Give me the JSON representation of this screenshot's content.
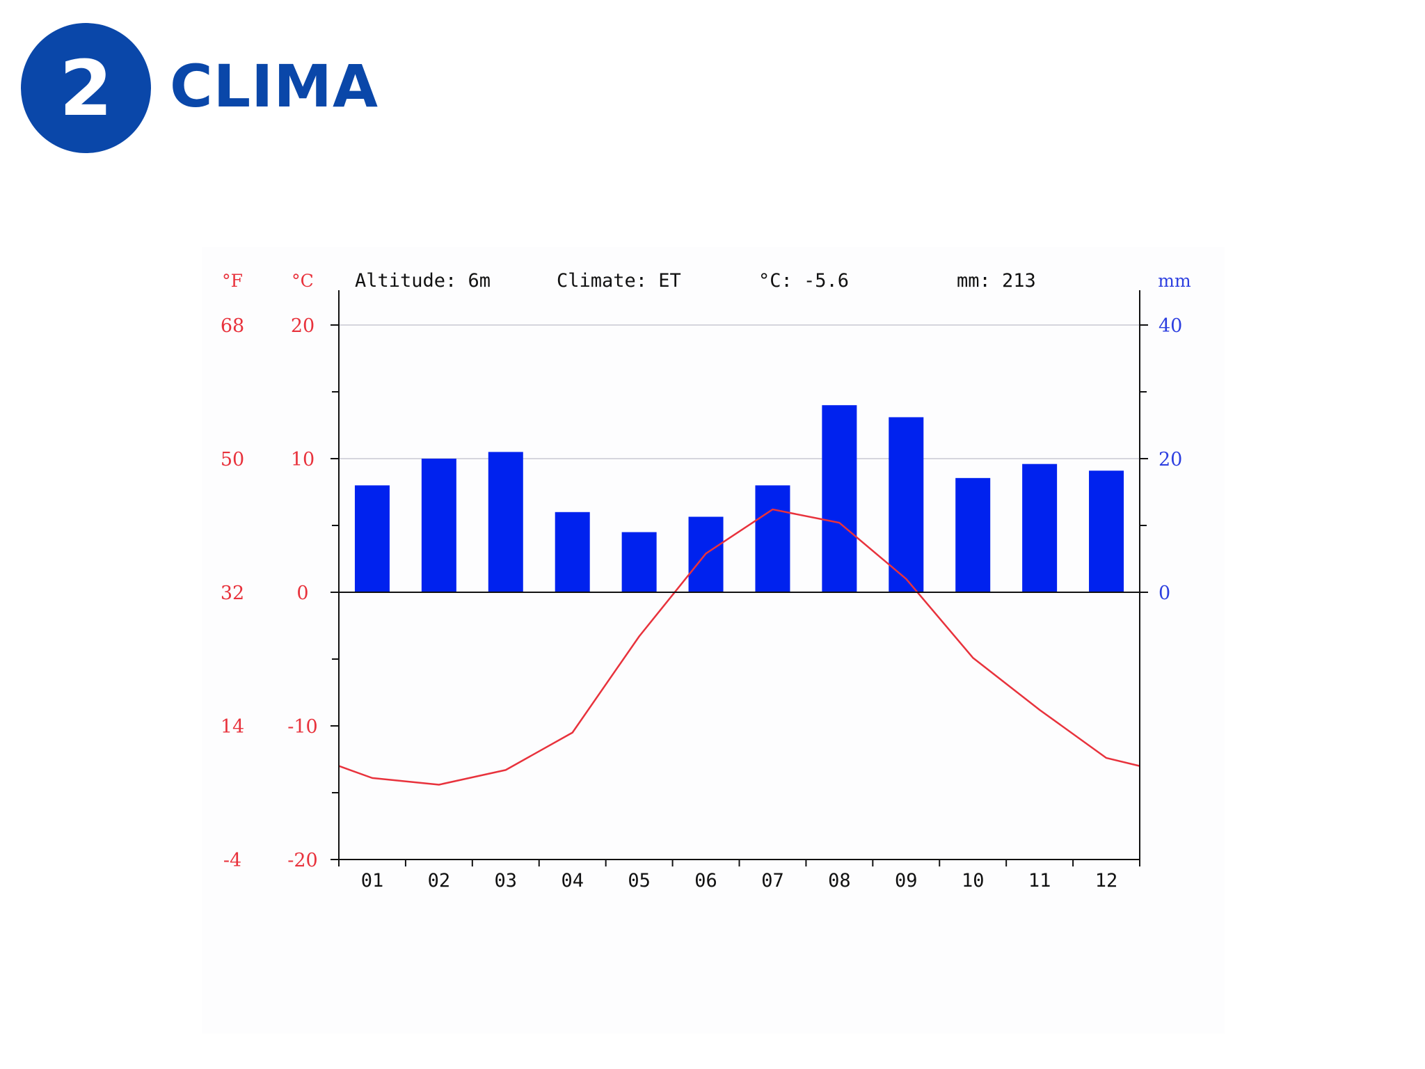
{
  "header": {
    "badge_number": "2",
    "title": "CLIMA"
  },
  "colors": {
    "brand_blue": "#0a47a9",
    "precip_bar": "#0022ee",
    "temperature_line": "#e8323c",
    "fahrenheit_axis": "#e8323c",
    "celsius_axis": "#e8323c",
    "mm_axis": "#2d3fe0",
    "gridline": "#c8c8d2",
    "axis": "#111111"
  },
  "chart_data": {
    "type": "bar",
    "info_line": {
      "altitude": "Altitude: 6m",
      "climate": "Climate: ET",
      "mean_temp": "°C: -5.6",
      "total_precip": "mm: 213"
    },
    "units": {
      "fahrenheit": "°F",
      "celsius": "°C",
      "precip": "mm"
    },
    "categories": [
      "01",
      "02",
      "03",
      "04",
      "05",
      "06",
      "07",
      "08",
      "09",
      "10",
      "11",
      "12"
    ],
    "celsius_ticks": [
      "20",
      "10",
      "0",
      "-10",
      "-20"
    ],
    "celsius_tick_values": [
      20,
      10,
      0,
      -10,
      -20
    ],
    "fahrenheit_ticks": [
      "68",
      "50",
      "32",
      "14",
      "-4"
    ],
    "precip_ticks": [
      "40",
      "20",
      "0"
    ],
    "precip_tick_values": [
      40,
      20,
      0
    ],
    "ylim_celsius": [
      -20,
      20
    ],
    "ylim_precip": [
      -40,
      40
    ],
    "gridlines_celsius": [
      20,
      10
    ],
    "series": [
      {
        "type": "bar",
        "axis": "right",
        "values": [
          16,
          20,
          21,
          12,
          9,
          11.3,
          16,
          28,
          26.2,
          17.1,
          19.2,
          18.2
        ]
      },
      {
        "type": "line",
        "axis": "left",
        "values": [
          -13.9,
          -14.4,
          -13.3,
          -10.5,
          -3.3,
          2.9,
          6.2,
          5.2,
          1.0,
          -4.9,
          -8.8,
          -12.4
        ]
      }
    ],
    "line_edge_values": [
      -13.0,
      -13.0
    ]
  }
}
